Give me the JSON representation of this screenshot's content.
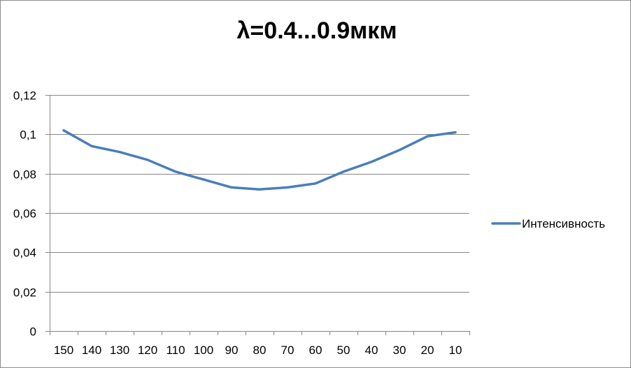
{
  "chart_data": {
    "type": "line",
    "title": "λ=0.4...0.9мкм",
    "xlabel": "",
    "ylabel": "",
    "categories": [
      "150",
      "140",
      "130",
      "120",
      "110",
      "100",
      "90",
      "80",
      "70",
      "60",
      "50",
      "40",
      "30",
      "20",
      "10"
    ],
    "series": [
      {
        "name": "Интенсивность",
        "color": "#4a7ebb",
        "values": [
          0.102,
          0.094,
          0.091,
          0.087,
          0.081,
          0.077,
          0.073,
          0.072,
          0.073,
          0.075,
          0.081,
          0.086,
          0.092,
          0.099,
          0.101
        ]
      }
    ],
    "ylim": [
      0,
      0.12
    ],
    "yticks": [
      "0",
      "0,02",
      "0,04",
      "0,06",
      "0,08",
      "0,1",
      "0,12"
    ],
    "grid": "horizontal",
    "legend": "right"
  }
}
